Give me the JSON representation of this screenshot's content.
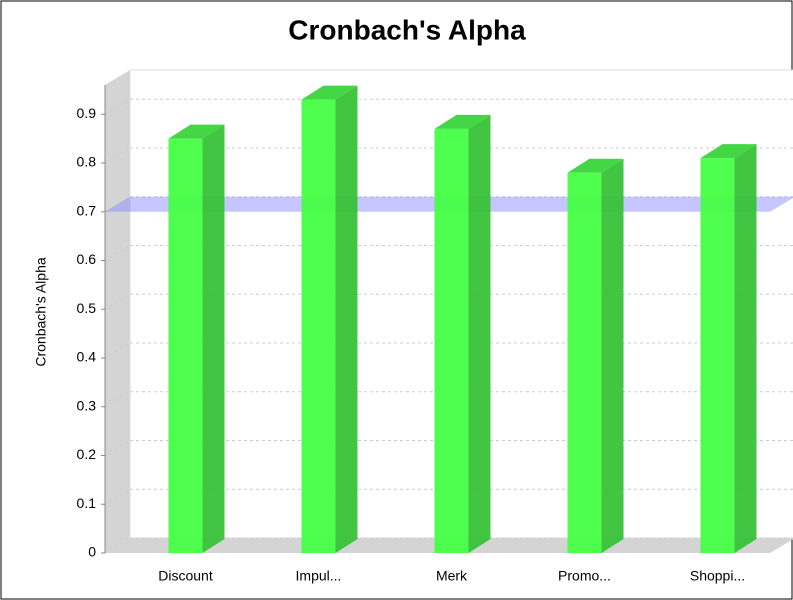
{
  "chart_data": {
    "type": "bar3d",
    "title": "Cronbach's Alpha",
    "y_label": "Cronbach's Alpha",
    "categories": [
      "Discount",
      "Impul...",
      "Merk",
      "Promo...",
      "Shoppi..."
    ],
    "values": [
      0.85,
      0.93,
      0.87,
      0.78,
      0.81
    ],
    "color": "#44ff44",
    "ylim": [
      0,
      0.96
    ],
    "yticks": [
      0,
      0.1,
      0.2,
      0.3,
      0.4,
      0.5,
      0.6,
      0.7,
      0.8,
      0.9
    ],
    "grid": true,
    "marker": 0.7
  }
}
